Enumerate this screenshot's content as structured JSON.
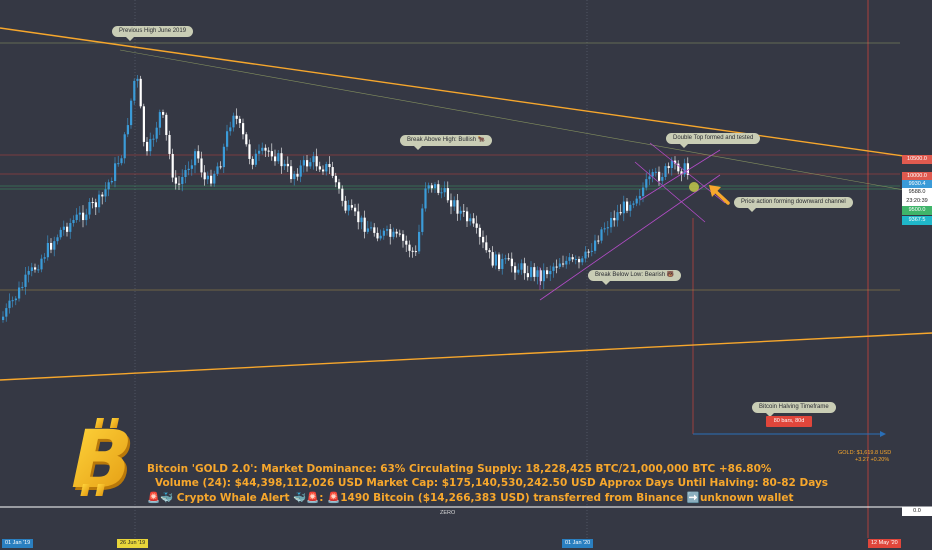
{
  "chart_data": {
    "type": "candlestick",
    "symbol": "BTC",
    "colors": {
      "up": "#3b9bd8",
      "down": "#ffffff",
      "trendline": "#f7a72c",
      "background": "#353844"
    },
    "price_axis": {
      "labels": [
        "10500.0",
        "10000.0",
        "9930.4",
        "9588.0",
        "23:20:39",
        "9500.0",
        "9367.5",
        "0.0"
      ],
      "label_colors": [
        "#e05a4f",
        "#e05a4f",
        "#3b9bd8",
        "#ffffff",
        "#ffffff",
        "#3fb56a",
        "#1fb7c9",
        "#ffffff"
      ]
    },
    "time_axis": {
      "labels": [
        "01 Jan '19",
        "26 Jun '19",
        "01 Jan '20",
        "12 May '20"
      ]
    },
    "annotations": [
      "Previous High June 2019",
      "Break Above High: Bullish 🐂",
      "Double Top formed and tested",
      "Price action forming downward channel",
      "Break Below Low: Bearish 🐻",
      "Bitcoin Halving Timeframe"
    ],
    "range_badge": "80 bars, 80d",
    "baseline_label": "ZERO",
    "gold_label": "GOLD: $1,619.8 USD",
    "gold_change": "+3.27 +0.20%"
  },
  "ticker": {
    "line1": "Bitcoin 'GOLD 2.0': Market Dominance: 63%  Circulating Supply: 18,228,425 BTC/21,000,000 BTC +86.80%",
    "line2": "Volume (24): $44,398,112,026 USD  Market Cap: $175,140,530,242.50 USD Approx Days Until Halving: 80-82 Days",
    "line3": "🚨🐳 Crypto Whale Alert 🐳🚨: 🚨1490 Bitcoin ($14,266,383 USD) transferred from Binance ➡️unknown wallet"
  }
}
